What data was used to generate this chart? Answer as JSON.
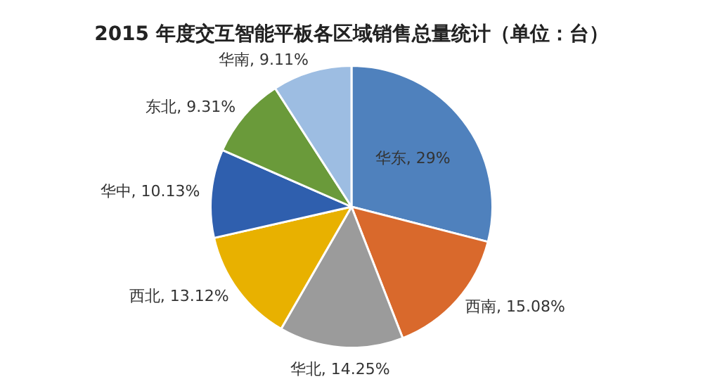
{
  "chart_data": {
    "type": "pie",
    "title": "2015 年度交互智能平板各区域销售总量统计（单位：台）",
    "categories": [
      "华东",
      "西南",
      "华北",
      "西北",
      "华中",
      "东北",
      "华南"
    ],
    "values": [
      29,
      15.08,
      14.25,
      13.12,
      10.13,
      9.31,
      9.11
    ],
    "value_labels": [
      "29%",
      "15.08%",
      "14.25%",
      "13.12%",
      "10.13%",
      "9.31%",
      "9.11%"
    ],
    "colors": [
      "#4f81bd",
      "#d9692c",
      "#9b9b9b",
      "#e8b100",
      "#2f5fae",
      "#6a9a3a",
      "#9dbde2"
    ],
    "legend": false
  }
}
